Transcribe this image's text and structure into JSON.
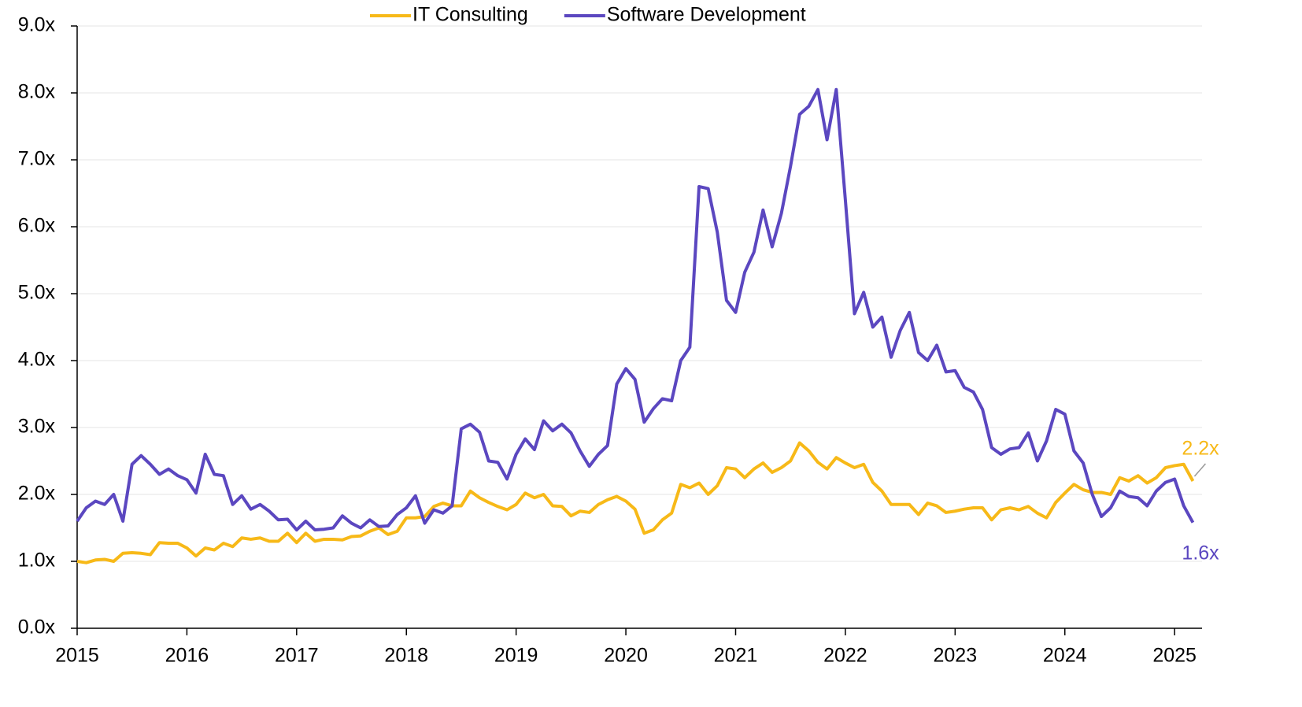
{
  "chart_data": {
    "type": "line",
    "xlim": [
      2015,
      2025.25
    ],
    "xticks": [
      2015,
      2016,
      2017,
      2018,
      2019,
      2020,
      2021,
      2022,
      2023,
      2024,
      2025
    ],
    "ylim": [
      0,
      9
    ],
    "yticks": [
      {
        "value": 0,
        "label": "0.0x"
      },
      {
        "value": 1,
        "label": "1.0x"
      },
      {
        "value": 2,
        "label": "2.0x"
      },
      {
        "value": 3,
        "label": "3.0x"
      },
      {
        "value": 4,
        "label": "4.0x"
      },
      {
        "value": 5,
        "label": "5.0x"
      },
      {
        "value": 6,
        "label": "6.0x"
      },
      {
        "value": 7,
        "label": "7.0x"
      },
      {
        "value": 8,
        "label": "8.0x"
      },
      {
        "value": 9,
        "label": "9.0x"
      }
    ],
    "grid": true,
    "legend": "top",
    "x": [
      2015,
      2015.083,
      2015.167,
      2015.25,
      2015.333,
      2015.417,
      2015.5,
      2015.583,
      2015.667,
      2015.75,
      2015.833,
      2015.917,
      2016,
      2016.083,
      2016.167,
      2016.25,
      2016.333,
      2016.417,
      2016.5,
      2016.583,
      2016.667,
      2016.75,
      2016.833,
      2016.917,
      2017,
      2017.083,
      2017.167,
      2017.25,
      2017.333,
      2017.417,
      2017.5,
      2017.583,
      2017.667,
      2017.75,
      2017.833,
      2017.917,
      2018,
      2018.083,
      2018.167,
      2018.25,
      2018.333,
      2018.417,
      2018.5,
      2018.583,
      2018.667,
      2018.75,
      2018.833,
      2018.917,
      2019,
      2019.083,
      2019.167,
      2019.25,
      2019.333,
      2019.417,
      2019.5,
      2019.583,
      2019.667,
      2019.75,
      2019.833,
      2019.917,
      2020,
      2020.083,
      2020.167,
      2020.25,
      2020.333,
      2020.417,
      2020.5,
      2020.583,
      2020.667,
      2020.75,
      2020.833,
      2020.917,
      2021,
      2021.083,
      2021.167,
      2021.25,
      2021.333,
      2021.417,
      2021.5,
      2021.583,
      2021.667,
      2021.75,
      2021.833,
      2021.917,
      2022,
      2022.083,
      2022.167,
      2022.25,
      2022.333,
      2022.417,
      2022.5,
      2022.583,
      2022.667,
      2022.75,
      2022.833,
      2022.917,
      2023,
      2023.083,
      2023.167,
      2023.25,
      2023.333,
      2023.417,
      2023.5,
      2023.583,
      2023.667,
      2023.75,
      2023.833,
      2023.917,
      2024,
      2024.083,
      2024.167,
      2024.25,
      2024.333,
      2024.417,
      2024.5,
      2024.583,
      2024.667,
      2024.75,
      2024.833,
      2024.917,
      2025,
      2025.083,
      2025.167
    ],
    "series": [
      {
        "name": "IT Consulting",
        "color": "#f7b918",
        "end_label": "2.2x",
        "values": [
          1.0,
          0.98,
          1.02,
          1.03,
          1.0,
          1.12,
          1.13,
          1.12,
          1.1,
          1.28,
          1.27,
          1.27,
          1.2,
          1.08,
          1.2,
          1.17,
          1.27,
          1.22,
          1.35,
          1.33,
          1.35,
          1.3,
          1.3,
          1.42,
          1.28,
          1.42,
          1.3,
          1.33,
          1.33,
          1.32,
          1.37,
          1.38,
          1.45,
          1.5,
          1.4,
          1.45,
          1.65,
          1.65,
          1.67,
          1.82,
          1.87,
          1.83,
          1.83,
          2.05,
          1.95,
          1.88,
          1.82,
          1.77,
          1.85,
          2.02,
          1.95,
          2.0,
          1.83,
          1.82,
          1.68,
          1.75,
          1.73,
          1.85,
          1.92,
          1.97,
          1.9,
          1.78,
          1.42,
          1.47,
          1.62,
          1.72,
          2.15,
          2.1,
          2.17,
          2.0,
          2.13,
          2.4,
          2.38,
          2.25,
          2.38,
          2.47,
          2.33,
          2.4,
          2.5,
          2.77,
          2.65,
          2.48,
          2.38,
          2.55,
          2.47,
          2.4,
          2.45,
          2.18,
          2.05,
          1.85,
          1.85,
          1.85,
          1.7,
          1.87,
          1.83,
          1.73,
          1.75,
          1.78,
          1.8,
          1.8,
          1.62,
          1.77,
          1.8,
          1.77,
          1.82,
          1.72,
          1.65,
          1.88,
          2.02,
          2.15,
          2.07,
          2.03,
          2.03,
          2.0,
          2.25,
          2.2,
          2.28,
          2.17,
          2.25,
          2.4,
          2.43,
          2.45,
          2.2
        ]
      },
      {
        "name": "Software Development",
        "color": "#5b47c0",
        "end_label": "1.6x",
        "values": [
          1.6,
          1.8,
          1.9,
          1.85,
          2.0,
          1.6,
          2.45,
          2.58,
          2.45,
          2.3,
          2.38,
          2.28,
          2.22,
          2.02,
          2.6,
          2.3,
          2.28,
          1.85,
          1.98,
          1.78,
          1.85,
          1.75,
          1.62,
          1.63,
          1.47,
          1.6,
          1.47,
          1.48,
          1.5,
          1.68,
          1.57,
          1.5,
          1.62,
          1.52,
          1.53,
          1.7,
          1.8,
          1.98,
          1.57,
          1.77,
          1.72,
          1.83,
          2.98,
          3.05,
          2.93,
          2.5,
          2.48,
          2.23,
          2.6,
          2.83,
          2.67,
          3.1,
          2.95,
          3.05,
          2.92,
          2.65,
          2.42,
          2.6,
          2.73,
          3.65,
          3.88,
          3.72,
          3.08,
          3.28,
          3.43,
          3.4,
          4.0,
          4.2,
          6.6,
          6.57,
          5.92,
          4.9,
          4.72,
          5.32,
          5.62,
          6.25,
          5.7,
          6.2,
          6.9,
          7.68,
          7.8,
          8.05,
          7.3,
          8.05,
          6.4,
          4.7,
          5.02,
          4.5,
          4.65,
          4.05,
          4.45,
          4.72,
          4.12,
          4.0,
          4.23,
          3.83,
          3.85,
          3.6,
          3.53,
          3.27,
          2.7,
          2.6,
          2.68,
          2.7,
          2.92,
          2.5,
          2.8,
          3.27,
          3.2,
          2.65,
          2.47,
          2.0,
          1.67,
          1.8,
          2.05,
          1.97,
          1.95,
          1.83,
          2.05,
          2.18,
          2.23,
          1.83,
          1.58
        ]
      }
    ]
  }
}
